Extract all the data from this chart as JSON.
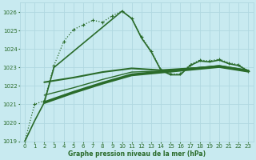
{
  "bg_color": "#c8eaf0",
  "grid_color": "#b0d8e0",
  "line_color": "#2a6b2a",
  "title": "Graphe pression niveau de la mer (hPa)",
  "xlim": [
    -0.5,
    23.5
  ],
  "ylim": [
    1019.0,
    1026.5
  ],
  "yticks": [
    1019,
    1020,
    1021,
    1022,
    1023,
    1024,
    1025,
    1026
  ],
  "xticks": [
    0,
    1,
    2,
    3,
    4,
    5,
    6,
    7,
    8,
    9,
    10,
    11,
    12,
    13,
    14,
    15,
    16,
    17,
    18,
    19,
    20,
    21,
    22,
    23
  ],
  "series_dotted": {
    "x": [
      0,
      1,
      2,
      3,
      4,
      5,
      6,
      7,
      8,
      9,
      10,
      11,
      12,
      13,
      14,
      15,
      16,
      17,
      18,
      19,
      20,
      21,
      22,
      23
    ],
    "y": [
      1019.0,
      1021.0,
      1021.2,
      1023.1,
      1024.4,
      1025.05,
      1025.3,
      1025.55,
      1025.45,
      1025.8,
      1026.05,
      1025.65,
      1024.65,
      1023.9,
      1022.9,
      1022.65,
      1022.65,
      1023.15,
      1023.4,
      1023.35,
      1023.45,
      1023.25,
      1023.15,
      1022.8
    ],
    "linewidth": 0.9,
    "markersize": 3.0
  },
  "series_solid_steep": {
    "x": [
      0,
      1,
      2,
      3,
      10,
      11,
      12,
      13,
      14,
      15,
      16,
      17,
      18,
      19,
      20,
      21,
      22,
      23
    ],
    "y": [
      1019.0,
      1020.1,
      1021.1,
      1023.0,
      1026.05,
      1025.65,
      1024.6,
      1023.85,
      1022.85,
      1022.6,
      1022.6,
      1023.1,
      1023.35,
      1023.3,
      1023.4,
      1023.2,
      1023.1,
      1022.8
    ],
    "linewidth": 1.2
  },
  "flat_lines": [
    {
      "x": [
        2,
        5,
        8,
        11,
        14,
        17,
        20,
        23
      ],
      "y": [
        1022.2,
        1022.45,
        1022.75,
        1022.95,
        1022.85,
        1022.95,
        1023.05,
        1022.8
      ],
      "linewidth": 1.5
    },
    {
      "x": [
        2,
        5,
        8,
        11,
        14,
        17,
        20,
        23
      ],
      "y": [
        1021.1,
        1021.65,
        1022.15,
        1022.6,
        1022.75,
        1022.9,
        1023.05,
        1022.8
      ],
      "linewidth": 2.5
    },
    {
      "x": [
        2,
        5,
        8,
        11,
        14,
        17,
        20,
        23
      ],
      "y": [
        1021.5,
        1021.9,
        1022.35,
        1022.75,
        1022.8,
        1022.95,
        1023.1,
        1022.85
      ],
      "linewidth": 1.0
    }
  ]
}
